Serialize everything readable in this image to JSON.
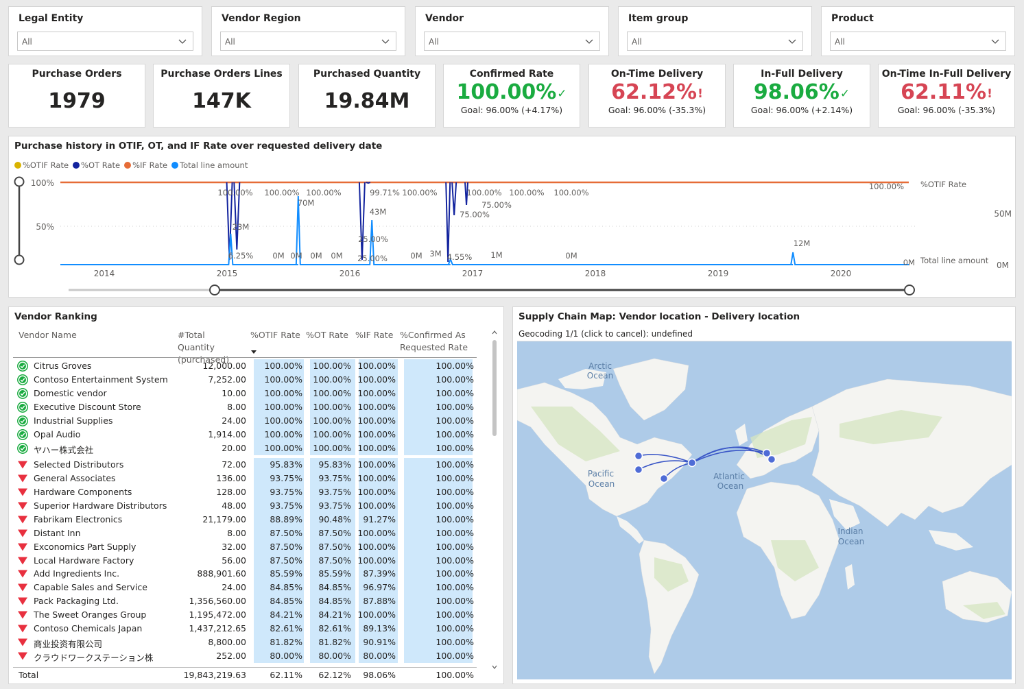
{
  "slicers": [
    {
      "label": "Legal Entity",
      "value": "All"
    },
    {
      "label": "Vendor Region",
      "value": "All"
    },
    {
      "label": "Vendor",
      "value": "All"
    },
    {
      "label": "Item group",
      "value": "All"
    },
    {
      "label": "Product",
      "value": "All"
    }
  ],
  "kpis": {
    "purchase_orders": {
      "title": "Purchase Orders",
      "value": "1979"
    },
    "purchase_order_lines": {
      "title": "Purchase Orders Lines",
      "value": "147K"
    },
    "purchased_quantity": {
      "title": "Purchased Quantity",
      "value": "19.84M"
    },
    "confirmed_rate": {
      "title": "Confirmed Rate",
      "value": "100.00%",
      "goal": "Goal: 96.00% (+4.17%)",
      "status": "good"
    },
    "on_time_delivery": {
      "title": "On-Time Delivery",
      "value": "62.12%",
      "goal": "Goal: 96.00% (-35.3%)",
      "status": "bad"
    },
    "in_full_delivery": {
      "title": "In-Full Delivery",
      "value": "98.06%",
      "goal": "Goal: 96.00% (+2.14%)",
      "status": "good"
    },
    "otif_delivery": {
      "title": "On-Time In-Full Delivery",
      "value": "62.11%",
      "goal": "Goal: 96.00% (-35.3%)",
      "status": "bad"
    }
  },
  "line_chart": {
    "title": "Purchase history in OTIF, OT, and IF Rate over requested delivery date",
    "legend": [
      {
        "name": "%OTIF Rate",
        "color": "#d9b300"
      },
      {
        "name": "%OT Rate",
        "color": "#12239e"
      },
      {
        "name": "%IF Rate",
        "color": "#e66c37"
      },
      {
        "name": "Total line amount",
        "color": "#118dff"
      }
    ],
    "y_left_ticks": [
      "100%",
      "50%"
    ],
    "y_right_ticks": [
      "50M",
      "0M"
    ],
    "x_ticks": [
      "2014",
      "2015",
      "2016",
      "2017",
      "2018",
      "2019",
      "2020"
    ],
    "end_label_rate": "100.00%",
    "end_label_rate_name": "%OTIF Rate",
    "end_label_amount": "0M",
    "end_label_amount_name": "Total line amount",
    "data_labels": [
      "100.00%",
      "100.00%",
      "100.00%",
      "99.71%",
      "100.00%",
      "100.00%",
      "100.00%",
      "100.00%",
      "75.00%",
      "75.00%",
      "70M",
      "23M",
      "43M",
      "25.00%",
      "25.00%",
      "6.25%",
      "0M",
      "0M",
      "0M",
      "0M",
      "0M",
      "3M",
      "4.55%",
      "1M",
      "0M",
      "12M"
    ]
  },
  "chart_data": {
    "type": "line",
    "title": "Purchase history in OTIF, OT, and IF Rate over requested delivery date",
    "xlabel": "",
    "ylabel": "",
    "x_range": [
      "2014",
      "2020"
    ],
    "series": [
      {
        "name": "%OTIF Rate",
        "x": [
          "2015-01",
          "2015-06",
          "2016-01",
          "2016-03",
          "2016-10",
          "2016-11",
          "2017-01"
        ],
        "values": [
          6.25,
          100,
          100,
          25,
          4.55,
          75,
          100
        ]
      },
      {
        "name": "%OT Rate",
        "x": [
          "2015-01",
          "2015-06",
          "2016-01",
          "2016-03",
          "2016-10",
          "2016-11",
          "2017-01"
        ],
        "values": [
          6.25,
          100,
          100,
          25,
          4.55,
          75,
          100
        ]
      },
      {
        "name": "%IF Rate",
        "x": [
          "2014-01",
          "2020-12"
        ],
        "values": [
          100,
          100
        ]
      },
      {
        "name": "Total line amount",
        "x": [
          "2015-01",
          "2015-07",
          "2016-03",
          "2016-10",
          "2016-12",
          "2019-07"
        ],
        "values": [
          23,
          70,
          43,
          3,
          1,
          12
        ]
      }
    ]
  },
  "vendor_table": {
    "title": "Vendor Ranking",
    "columns": [
      "Vendor Name",
      "#Total Quantity (purchased)",
      "%OTIF Rate",
      "%OT Rate",
      "%IF Rate",
      "%Confirmed As Requested Rate"
    ],
    "rows": [
      {
        "name": "Citrus Groves",
        "qty": "12,000.00",
        "otif": "100.00%",
        "ot": "100.00%",
        "if": "100.00%",
        "conf": "100.00%",
        "status": "good"
      },
      {
        "name": "Contoso Entertainment System",
        "qty": "7,252.00",
        "otif": "100.00%",
        "ot": "100.00%",
        "if": "100.00%",
        "conf": "100.00%",
        "status": "good"
      },
      {
        "name": "Domestic vendor",
        "qty": "10.00",
        "otif": "100.00%",
        "ot": "100.00%",
        "if": "100.00%",
        "conf": "100.00%",
        "status": "good"
      },
      {
        "name": "Executive Discount Store",
        "qty": "8.00",
        "otif": "100.00%",
        "ot": "100.00%",
        "if": "100.00%",
        "conf": "100.00%",
        "status": "good"
      },
      {
        "name": "Industrial Supplies",
        "qty": "24.00",
        "otif": "100.00%",
        "ot": "100.00%",
        "if": "100.00%",
        "conf": "100.00%",
        "status": "good"
      },
      {
        "name": "Opal Audio",
        "qty": "1,914.00",
        "otif": "100.00%",
        "ot": "100.00%",
        "if": "100.00%",
        "conf": "100.00%",
        "status": "good"
      },
      {
        "name": "ヤハー株式会社",
        "qty": "20.00",
        "otif": "100.00%",
        "ot": "100.00%",
        "if": "100.00%",
        "conf": "100.00%",
        "status": "good"
      },
      {
        "name": "Selected Distributors",
        "qty": "72.00",
        "otif": "95.83%",
        "ot": "95.83%",
        "if": "100.00%",
        "conf": "100.00%",
        "status": "bad"
      },
      {
        "name": "General Associates",
        "qty": "136.00",
        "otif": "93.75%",
        "ot": "93.75%",
        "if": "100.00%",
        "conf": "100.00%",
        "status": "bad"
      },
      {
        "name": "Hardware Components",
        "qty": "128.00",
        "otif": "93.75%",
        "ot": "93.75%",
        "if": "100.00%",
        "conf": "100.00%",
        "status": "bad"
      },
      {
        "name": "Superior Hardware Distributors",
        "qty": "48.00",
        "otif": "93.75%",
        "ot": "93.75%",
        "if": "100.00%",
        "conf": "100.00%",
        "status": "bad"
      },
      {
        "name": "Fabrikam Electronics",
        "qty": "21,179.00",
        "otif": "88.89%",
        "ot": "90.48%",
        "if": "91.27%",
        "conf": "100.00%",
        "status": "bad"
      },
      {
        "name": "Distant Inn",
        "qty": "8.00",
        "otif": "87.50%",
        "ot": "87.50%",
        "if": "100.00%",
        "conf": "100.00%",
        "status": "bad"
      },
      {
        "name": "Exconomics Part Supply",
        "qty": "32.00",
        "otif": "87.50%",
        "ot": "87.50%",
        "if": "100.00%",
        "conf": "100.00%",
        "status": "bad"
      },
      {
        "name": "Local Hardware Factory",
        "qty": "56.00",
        "otif": "87.50%",
        "ot": "87.50%",
        "if": "100.00%",
        "conf": "100.00%",
        "status": "bad"
      },
      {
        "name": "Add Ingredients Inc.",
        "qty": "888,901.60",
        "otif": "85.59%",
        "ot": "85.59%",
        "if": "87.39%",
        "conf": "100.00%",
        "status": "bad"
      },
      {
        "name": "Capable Sales and Service",
        "qty": "24.00",
        "otif": "84.85%",
        "ot": "84.85%",
        "if": "96.97%",
        "conf": "100.00%",
        "status": "bad"
      },
      {
        "name": "Pack Packaging Ltd.",
        "qty": "1,356,560.00",
        "otif": "84.85%",
        "ot": "84.85%",
        "if": "87.88%",
        "conf": "100.00%",
        "status": "bad"
      },
      {
        "name": "The Sweet Oranges Group",
        "qty": "1,195,472.00",
        "otif": "84.21%",
        "ot": "84.21%",
        "if": "100.00%",
        "conf": "100.00%",
        "status": "bad"
      },
      {
        "name": "Contoso Chemicals Japan",
        "qty": "1,437,212.65",
        "otif": "82.61%",
        "ot": "82.61%",
        "if": "89.13%",
        "conf": "100.00%",
        "status": "bad"
      },
      {
        "name": "商业投资有限公司",
        "qty": "8,800.00",
        "otif": "81.82%",
        "ot": "81.82%",
        "if": "90.91%",
        "conf": "100.00%",
        "status": "bad"
      },
      {
        "name": "クラウドワークステーション株",
        "qty": "252.00",
        "otif": "80.00%",
        "ot": "80.00%",
        "if": "80.00%",
        "conf": "100.00%",
        "status": "bad"
      }
    ],
    "total": {
      "label": "Total",
      "qty": "19,843,219.63",
      "otif": "62.11%",
      "ot": "62.12%",
      "if": "98.06%",
      "conf": "100.00%"
    }
  },
  "map": {
    "title": "Supply Chain Map: Vendor location - Delivery location",
    "geocode_status": "Geocoding 1/1 (click to cancel): undefined",
    "labels": {
      "arctic": [
        "Arctic",
        "Ocean"
      ],
      "pacific": [
        "Pacific",
        "Ocean"
      ],
      "atlantic": [
        "Atlantic",
        "Ocean"
      ],
      "indian": [
        "Indian",
        "Ocean"
      ]
    }
  },
  "colors": {
    "good": "#1aab40",
    "bad": "#d64554",
    "bar": "#cfe8fb",
    "water": "#aecbe8",
    "land": "#f4f4f1"
  }
}
